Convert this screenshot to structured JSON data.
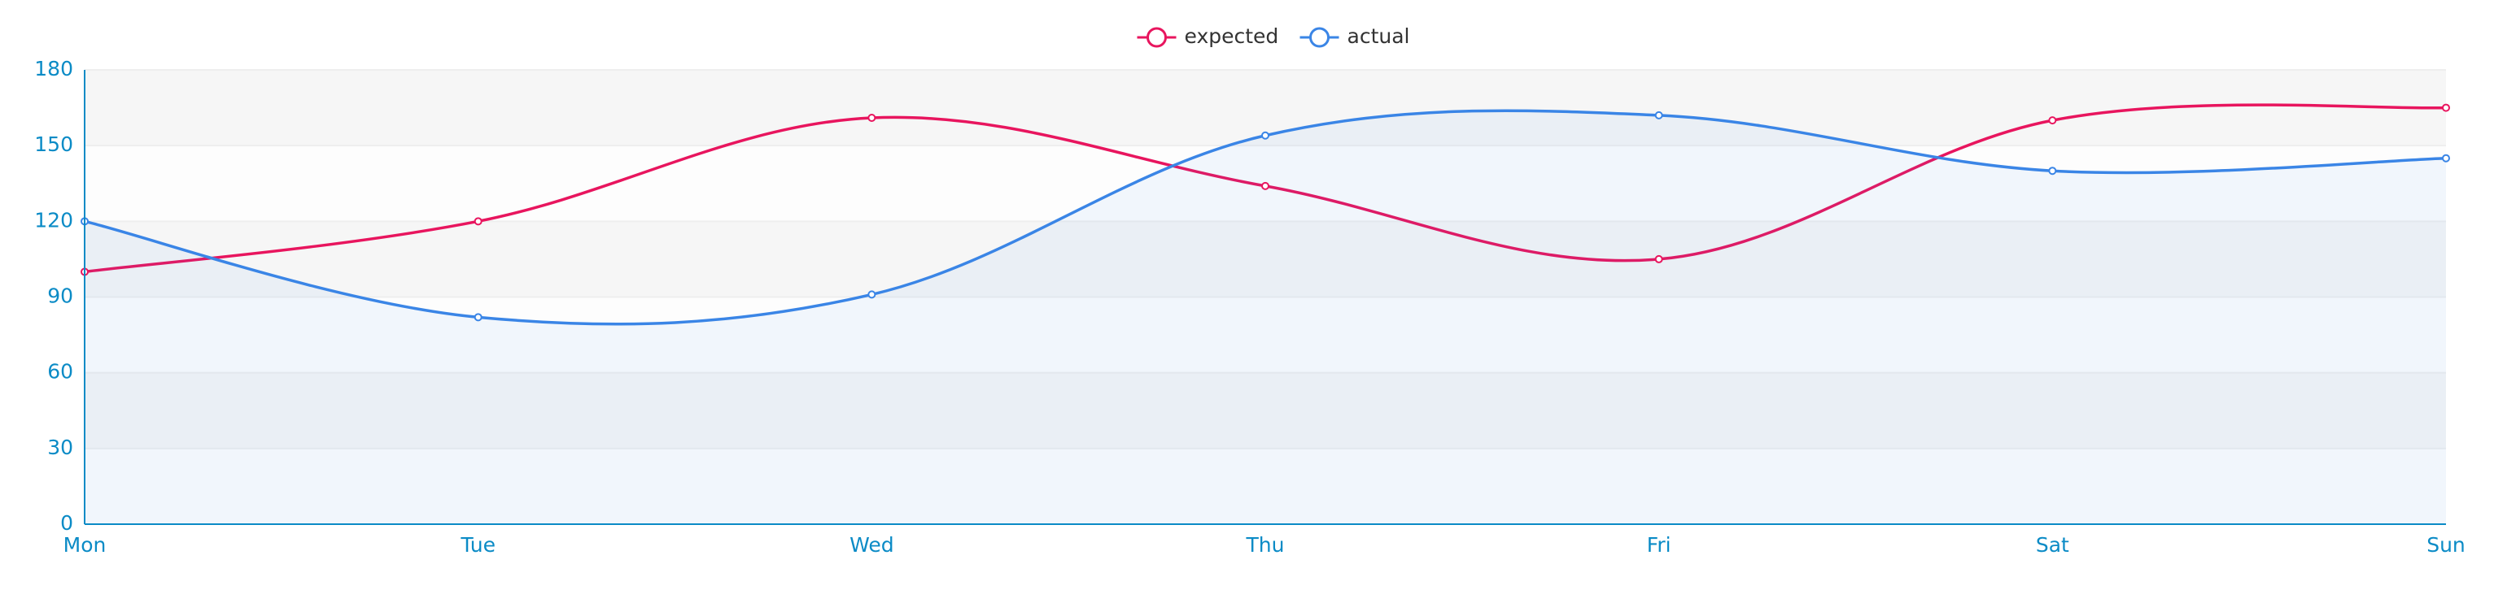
{
  "chart_data": {
    "type": "line",
    "smooth": true,
    "split_area": true,
    "legend": "top",
    "categories": [
      "Mon",
      "Tue",
      "Wed",
      "Thu",
      "Fri",
      "Sat",
      "Sun"
    ],
    "series": [
      {
        "name": "expected",
        "color": "#e8155e",
        "values": [
          100,
          120,
          161,
          134,
          105,
          160,
          165
        ]
      },
      {
        "name": "actual",
        "color": "#3a85e6",
        "area": true,
        "values": [
          120,
          82,
          91,
          154,
          162,
          140,
          145
        ]
      }
    ],
    "ylim": [
      0,
      180
    ],
    "yticks": [
      0,
      30,
      60,
      90,
      120,
      150,
      180
    ]
  }
}
